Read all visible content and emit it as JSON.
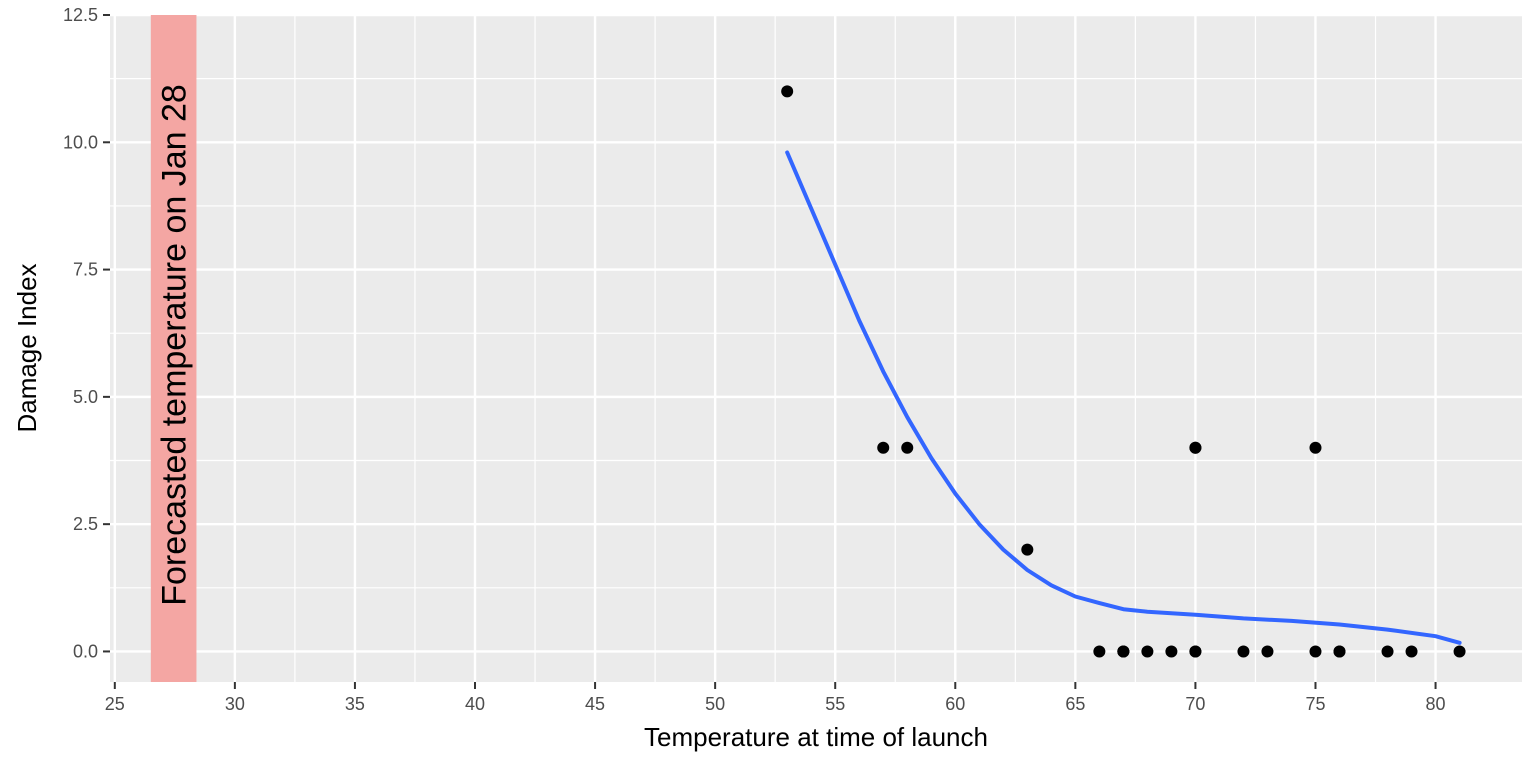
{
  "chart_data": {
    "type": "scatter",
    "xlabel": "Temperature at time of launch",
    "ylabel": "Damage Index",
    "xlim": [
      24.8,
      83.6
    ],
    "ylim": [
      -0.6,
      12.5
    ],
    "x_ticks": [
      25,
      30,
      35,
      40,
      45,
      50,
      55,
      60,
      65,
      70,
      75,
      80
    ],
    "x_tick_labels": [
      "25",
      "30",
      "35",
      "40",
      "45",
      "50",
      "55",
      "60",
      "65",
      "70",
      "75",
      "80"
    ],
    "y_ticks": [
      0,
      2.5,
      5,
      7.5,
      10,
      12.5
    ],
    "y_tick_labels": [
      "0.0",
      "2.5",
      "5.0",
      "7.5",
      "10.0",
      "12.5"
    ],
    "grid": true,
    "points": [
      {
        "x": 53,
        "y": 11
      },
      {
        "x": 57,
        "y": 4
      },
      {
        "x": 58,
        "y": 4
      },
      {
        "x": 63,
        "y": 2
      },
      {
        "x": 66,
        "y": 0
      },
      {
        "x": 67,
        "y": 0
      },
      {
        "x": 67,
        "y": 0
      },
      {
        "x": 67,
        "y": 0
      },
      {
        "x": 68,
        "y": 0
      },
      {
        "x": 69,
        "y": 0
      },
      {
        "x": 70,
        "y": 0
      },
      {
        "x": 70,
        "y": 0
      },
      {
        "x": 70,
        "y": 4
      },
      {
        "x": 70,
        "y": 4
      },
      {
        "x": 72,
        "y": 0
      },
      {
        "x": 73,
        "y": 0
      },
      {
        "x": 75,
        "y": 0
      },
      {
        "x": 75,
        "y": 4
      },
      {
        "x": 76,
        "y": 0
      },
      {
        "x": 76,
        "y": 0
      },
      {
        "x": 78,
        "y": 0
      },
      {
        "x": 79,
        "y": 0
      },
      {
        "x": 81,
        "y": 0
      }
    ],
    "smooth_line": [
      {
        "x": 53,
        "y": 9.8
      },
      {
        "x": 54,
        "y": 8.7
      },
      {
        "x": 55,
        "y": 7.6
      },
      {
        "x": 56,
        "y": 6.5
      },
      {
        "x": 57,
        "y": 5.5
      },
      {
        "x": 58,
        "y": 4.6
      },
      {
        "x": 59,
        "y": 3.8
      },
      {
        "x": 60,
        "y": 3.1
      },
      {
        "x": 61,
        "y": 2.5
      },
      {
        "x": 62,
        "y": 2.0
      },
      {
        "x": 63,
        "y": 1.6
      },
      {
        "x": 64,
        "y": 1.3
      },
      {
        "x": 65,
        "y": 1.08
      },
      {
        "x": 66,
        "y": 0.95
      },
      {
        "x": 67,
        "y": 0.83
      },
      {
        "x": 68,
        "y": 0.78
      },
      {
        "x": 69,
        "y": 0.75
      },
      {
        "x": 70,
        "y": 0.72
      },
      {
        "x": 72,
        "y": 0.65
      },
      {
        "x": 74,
        "y": 0.6
      },
      {
        "x": 76,
        "y": 0.53
      },
      {
        "x": 78,
        "y": 0.43
      },
      {
        "x": 80,
        "y": 0.3
      },
      {
        "x": 81,
        "y": 0.17
      }
    ],
    "highlight_band": {
      "x_start": 26.5,
      "x_end": 28.4,
      "label": "Forecasted temperature on Jan 28"
    },
    "colors": {
      "panel": "#ebebeb",
      "grid": "#ffffff",
      "point": "#000000",
      "line": "#3366ff",
      "band": "#f4a6a3",
      "tick": "#333333"
    }
  }
}
